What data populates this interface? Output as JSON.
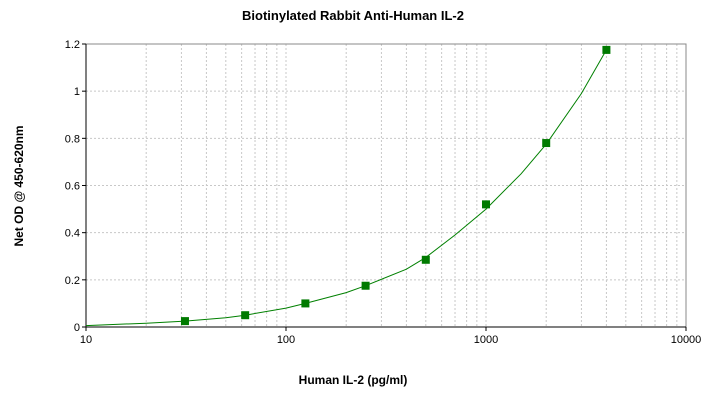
{
  "chart_data": {
    "type": "scatter",
    "title": "Biotinylated Rabbit Anti-Human IL-2",
    "xlabel": "Human IL-2 (pg/ml)",
    "ylabel": "Net OD @ 450-620nm",
    "x_scale": "log",
    "xlim": [
      10,
      10000
    ],
    "ylim": [
      0,
      1.2
    ],
    "x_ticks": [
      "10",
      "100",
      "1000",
      "10000"
    ],
    "y_ticks": [
      "0",
      "0.2",
      "0.4",
      "0.6",
      "0.8",
      "1",
      "1.2"
    ],
    "grid": true,
    "legend": "none",
    "series": [
      {
        "points": [
          {
            "x": 31.25,
            "y": 0.025
          },
          {
            "x": 62.5,
            "y": 0.05
          },
          {
            "x": 125,
            "y": 0.1
          },
          {
            "x": 250,
            "y": 0.175
          },
          {
            "x": 500,
            "y": 0.285
          },
          {
            "x": 1000,
            "y": 0.52
          },
          {
            "x": 2000,
            "y": 0.78
          },
          {
            "x": 4000,
            "y": 1.175
          }
        ],
        "fit_curve": [
          {
            "x": 10,
            "y": 0.006
          },
          {
            "x": 20,
            "y": 0.016
          },
          {
            "x": 31.25,
            "y": 0.025
          },
          {
            "x": 50,
            "y": 0.039
          },
          {
            "x": 62.5,
            "y": 0.05
          },
          {
            "x": 100,
            "y": 0.08
          },
          {
            "x": 125,
            "y": 0.1
          },
          {
            "x": 200,
            "y": 0.146
          },
          {
            "x": 250,
            "y": 0.175
          },
          {
            "x": 400,
            "y": 0.245
          },
          {
            "x": 500,
            "y": 0.295
          },
          {
            "x": 700,
            "y": 0.39
          },
          {
            "x": 1000,
            "y": 0.5
          },
          {
            "x": 1500,
            "y": 0.65
          },
          {
            "x": 2000,
            "y": 0.775
          },
          {
            "x": 3000,
            "y": 0.99
          },
          {
            "x": 4000,
            "y": 1.175
          }
        ]
      }
    ],
    "colors": {
      "marker": "#007a00",
      "curve": "#008000",
      "grid": "#c8c8c8",
      "axis": "#000000"
    }
  }
}
